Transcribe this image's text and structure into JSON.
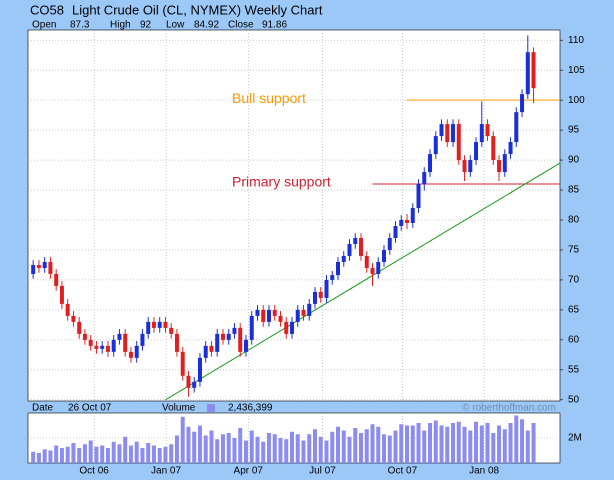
{
  "chart_data": {
    "type": "candlestick",
    "symbol": "CO58",
    "title": "Light Crude Oil (CL, NYMEX) Weekly Chart",
    "readout": {
      "open_label": "Open",
      "open": 87.3,
      "high_label": "High",
      "high": 92,
      "low_label": "Low",
      "low": 84.92,
      "close_label": "Close",
      "close": 91.86,
      "date_label": "Date",
      "date": "26 Oct 07",
      "volume_label": "Volume",
      "volume": "2,436,399"
    },
    "watermark": "© roberthoffman.com",
    "up_color": "#1a2fd6",
    "down_color": "#e02020",
    "volume_color": "#8c8cf0",
    "ohlc": [
      [
        71,
        73.3,
        70.2,
        72.5
      ],
      [
        72.5,
        73.3,
        71.2,
        72
      ],
      [
        72,
        73.8,
        71.2,
        73
      ],
      [
        73,
        73.8,
        70.2,
        71
      ],
      [
        71,
        71.8,
        68.2,
        69
      ],
      [
        69,
        69.8,
        65.2,
        66
      ],
      [
        66,
        66.8,
        63.2,
        64
      ],
      [
        64,
        64.8,
        62.2,
        63
      ],
      [
        63,
        63.8,
        60.2,
        61
      ],
      [
        61,
        61.8,
        59.2,
        60
      ],
      [
        60,
        60.8,
        58.2,
        59
      ],
      [
        59,
        59.8,
        57.7,
        58.5
      ],
      [
        58.5,
        59.8,
        57.7,
        59
      ],
      [
        59,
        59.8,
        57.2,
        58
      ],
      [
        58,
        60.8,
        57.2,
        60
      ],
      [
        60,
        61.8,
        59.2,
        61
      ],
      [
        61,
        61.8,
        57.2,
        58
      ],
      [
        58,
        58.8,
        56.2,
        57
      ],
      [
        57,
        59.8,
        56.2,
        59
      ],
      [
        59,
        61.8,
        58.2,
        61
      ],
      [
        61,
        63.8,
        60.2,
        63
      ],
      [
        63,
        63.8,
        61.2,
        62
      ],
      [
        62,
        63.8,
        61.2,
        63
      ],
      [
        63,
        63.8,
        61.2,
        62
      ],
      [
        62,
        62.8,
        60.2,
        61
      ],
      [
        61,
        61.8,
        57.2,
        58
      ],
      [
        58,
        58.8,
        53.2,
        54
      ],
      [
        54,
        54.8,
        50.5,
        52
      ],
      [
        52,
        53.8,
        51.2,
        53
      ],
      [
        53,
        57.8,
        52.2,
        57
      ],
      [
        57,
        59.8,
        56.2,
        59
      ],
      [
        59,
        59.8,
        57.2,
        58
      ],
      [
        58,
        61.8,
        57.2,
        61
      ],
      [
        61,
        61.8,
        59.2,
        60
      ],
      [
        60,
        61.8,
        59.2,
        61
      ],
      [
        61,
        62.8,
        60.2,
        62
      ],
      [
        62,
        62.8,
        57.2,
        58
      ],
      [
        58,
        60.8,
        57.2,
        60
      ],
      [
        60,
        64.8,
        59.2,
        64
      ],
      [
        64,
        65.8,
        63.2,
        65
      ],
      [
        65,
        65.8,
        62.2,
        63
      ],
      [
        63,
        65.8,
        62.2,
        65
      ],
      [
        65,
        65.8,
        63.2,
        64
      ],
      [
        64,
        64.8,
        62.2,
        63
      ],
      [
        63,
        63.8,
        60.2,
        61
      ],
      [
        61,
        63.8,
        60.2,
        63
      ],
      [
        63,
        65.8,
        62.2,
        65
      ],
      [
        65,
        65.8,
        63.2,
        64
      ],
      [
        64,
        66.8,
        63.2,
        66
      ],
      [
        66,
        68.8,
        65.2,
        68
      ],
      [
        68,
        68.8,
        66.2,
        67
      ],
      [
        67,
        70.8,
        66.2,
        70
      ],
      [
        70,
        71.5,
        69.2,
        70.8
      ],
      [
        70.8,
        73.8,
        70,
        73
      ],
      [
        73,
        74.8,
        72.2,
        74
      ],
      [
        74,
        76.8,
        73.2,
        76
      ],
      [
        76,
        77.8,
        75.2,
        77
      ],
      [
        77,
        77.8,
        73.2,
        74
      ],
      [
        74,
        74.8,
        71.2,
        72
      ],
      [
        72,
        72.8,
        69,
        71
      ],
      [
        71,
        73.8,
        70.2,
        73
      ],
      [
        73,
        75.8,
        72.2,
        75
      ],
      [
        75,
        77.8,
        74.2,
        77
      ],
      [
        77,
        79.8,
        76.2,
        79
      ],
      [
        79,
        80.8,
        78.2,
        80
      ],
      [
        80,
        81,
        78.5,
        79.5
      ],
      [
        79.5,
        82.8,
        78.7,
        82
      ],
      [
        82,
        86.8,
        81.2,
        86
      ],
      [
        86,
        88.8,
        84.9,
        88
      ],
      [
        88,
        91.8,
        87.2,
        91
      ],
      [
        91,
        94.8,
        90.2,
        94
      ],
      [
        94,
        96.8,
        93.2,
        96
      ],
      [
        96,
        96.8,
        92.2,
        93
      ],
      [
        93,
        96.8,
        92.2,
        96
      ],
      [
        96,
        96.8,
        89.2,
        90
      ],
      [
        90,
        90.8,
        86.5,
        88
      ],
      [
        88,
        90.8,
        87.2,
        90
      ],
      [
        90,
        93.8,
        89.2,
        93
      ],
      [
        93,
        99.8,
        92.2,
        96
      ],
      [
        96,
        96.8,
        93.2,
        94
      ],
      [
        94,
        94.8,
        89.2,
        90
      ],
      [
        90,
        90.8,
        86.5,
        88
      ],
      [
        88,
        91.8,
        87.2,
        91
      ],
      [
        91,
        93.8,
        90.2,
        93
      ],
      [
        93,
        98.8,
        92.2,
        98
      ],
      [
        98,
        101.8,
        97.2,
        101
      ],
      [
        101,
        110.8,
        100.2,
        108
      ],
      [
        108,
        108.8,
        99.5,
        102
      ]
    ],
    "volume_values": [
      900000,
      800000,
      1100000,
      1000000,
      1400000,
      1200000,
      1300000,
      1600000,
      1200000,
      1500000,
      1800000,
      1300000,
      1400000,
      1200000,
      1700000,
      1500000,
      2100000,
      1400000,
      1700000,
      1200000,
      1600000,
      1400000,
      1200000,
      1300000,
      1500000,
      2200000,
      3700000,
      2900000,
      2500000,
      3000000,
      2200000,
      2600000,
      1900000,
      2300000,
      2400000,
      2000000,
      2800000,
      1800000,
      2600000,
      2100000,
      1700000,
      2400000,
      2300000,
      2000000,
      1900000,
      2500000,
      2300000,
      1800000,
      2300000,
      2700000,
      2100000,
      1800000,
      2500000,
      2900000,
      2600000,
      2100000,
      2800000,
      2400000,
      2700000,
      3100000,
      2900000,
      2300000,
      2200000,
      2600000,
      3100000,
      3000000,
      3000000,
      3200000,
      2600000,
      3200000,
      3400000,
      3000000,
      2900000,
      3200000,
      3300000,
      2900000,
      2600000,
      3300000,
      3000000,
      3200000,
      2400000,
      3000000,
      2700000,
      3200000,
      3800000,
      3500000,
      2600000,
      3200000
    ],
    "xlim": [
      -0.9,
      91.6
    ],
    "xticks": [
      {
        "value": 10.6,
        "label": "Oct 06"
      },
      {
        "value": 23.1,
        "label": "Jan 07"
      },
      {
        "value": 37.4,
        "label": "Apr 07"
      },
      {
        "value": 50.3,
        "label": "Jul 07"
      },
      {
        "value": 64.2,
        "label": "Oct 07"
      },
      {
        "value": 78.4,
        "label": "Jan 08"
      }
    ],
    "ylim": [
      49.8,
      111.7
    ],
    "yticks": [
      50,
      55,
      60,
      65,
      70,
      75,
      80,
      85,
      90,
      95,
      100,
      105,
      110
    ],
    "volume_lim": [
      0,
      4000000
    ],
    "volume_ticks": [
      {
        "value": 2000000,
        "label": "2M"
      }
    ],
    "grid": true,
    "supports": [
      {
        "text": "Bull support",
        "value": 100,
        "start": 65,
        "color": "#ff9900"
      },
      {
        "text": "Primary support",
        "value": 86,
        "start": 59,
        "color": "#cc2233"
      }
    ],
    "trendline": {
      "color": "#1a9a1a",
      "x": [
        23,
        91.6
      ],
      "y": [
        50,
        89.5
      ]
    }
  }
}
